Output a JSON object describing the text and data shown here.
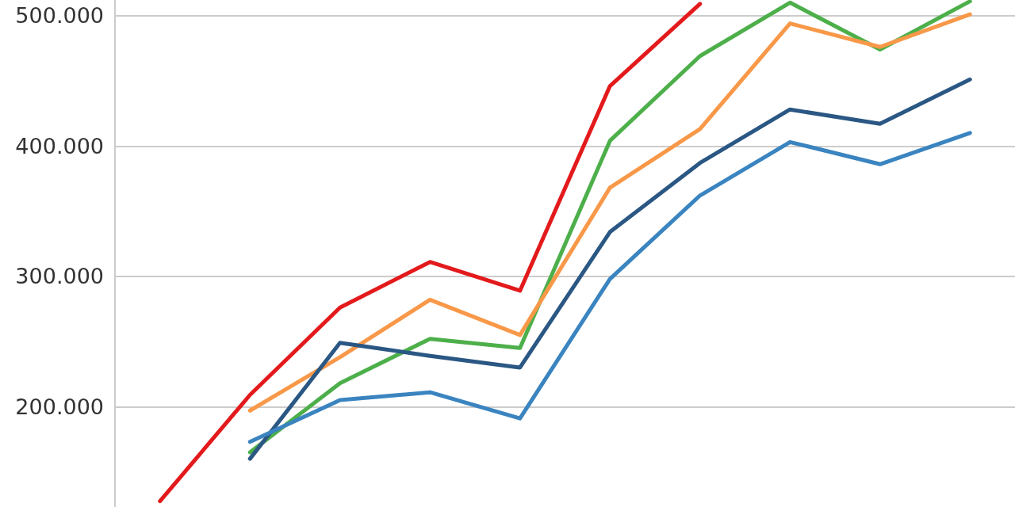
{
  "chart_data": {
    "type": "line",
    "categories": [
      null,
      null,
      null,
      null,
      null,
      null,
      null,
      null,
      null,
      null
    ],
    "series": [
      {
        "color": "#e31a1c",
        "values": [
          127500,
          209000,
          276000,
          311000,
          289000,
          446000,
          509000,
          null,
          null,
          null
        ]
      },
      {
        "color": "#4daf4a",
        "values": [
          null,
          165000,
          218000,
          252000,
          245000,
          404000,
          469000,
          510000,
          474000,
          511000
        ]
      },
      {
        "color": "#f89848",
        "values": [
          null,
          197000,
          238000,
          282000,
          255000,
          368000,
          413000,
          494000,
          476000,
          501000
        ]
      },
      {
        "color": "#2a5783",
        "values": [
          null,
          160000,
          249000,
          239000,
          230000,
          334000,
          387000,
          428000,
          417000,
          451000
        ]
      },
      {
        "color": "#3a84c0",
        "values": [
          null,
          173000,
          205000,
          211000,
          191000,
          298000,
          362000,
          403000,
          386000,
          410000
        ]
      }
    ],
    "ylim": [
      123000,
      512000
    ],
    "yticks": [
      {
        "value": 200000,
        "label": "200.000"
      },
      {
        "value": 300000,
        "label": "300.000"
      },
      {
        "value": 400000,
        "label": "400.000"
      },
      {
        "value": 500000,
        "label": "500.000"
      }
    ],
    "grid": "y",
    "marker": "none",
    "line_style": "solid",
    "tick_labels": "y"
  }
}
